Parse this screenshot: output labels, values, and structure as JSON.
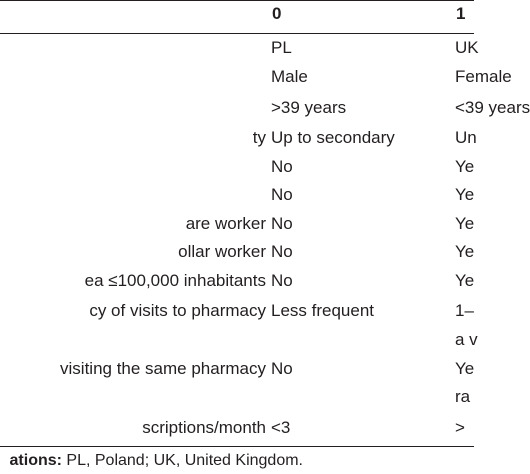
{
  "table": {
    "headers": [
      "0",
      "1"
    ],
    "rows": [
      {
        "variable": "",
        "col0": "PL",
        "col1": "UK"
      },
      {
        "variable": "",
        "col0": "Male",
        "col1": "Female"
      },
      {
        "variable": "",
        "col0": ">39 years",
        "col1": "<39 years"
      },
      {
        "variable": "ty",
        "col0": "Up to secondary",
        "col1": "Un"
      },
      {
        "variable": "",
        "col0": "No",
        "col1": "Ye"
      },
      {
        "variable": "",
        "col0": "No",
        "col1": "Ye"
      },
      {
        "variable": "are worker",
        "col0": "No",
        "col1": "Ye"
      },
      {
        "variable": "ollar worker",
        "col0": "No",
        "col1": "Ye"
      },
      {
        "variable": "ea ≤100,000 inhabitants",
        "col0": "No",
        "col1": "Ye"
      },
      {
        "variable": "cy of visits to pharmacy",
        "col0": "Less frequent",
        "col1": "1–"
      },
      {
        "variable": "",
        "col0": "",
        "col1": "a v"
      },
      {
        "variable": "visiting the same pharmacy",
        "col0": "No",
        "col1": "Ye"
      },
      {
        "variable": "",
        "col0": "",
        "col1": "ra"
      },
      {
        "variable": "scriptions/month",
        "col0": "<3",
        "col1": ">"
      }
    ]
  },
  "footnote": {
    "bold": "ations:",
    "text": " PL, Poland; UK, United Kingdom."
  }
}
